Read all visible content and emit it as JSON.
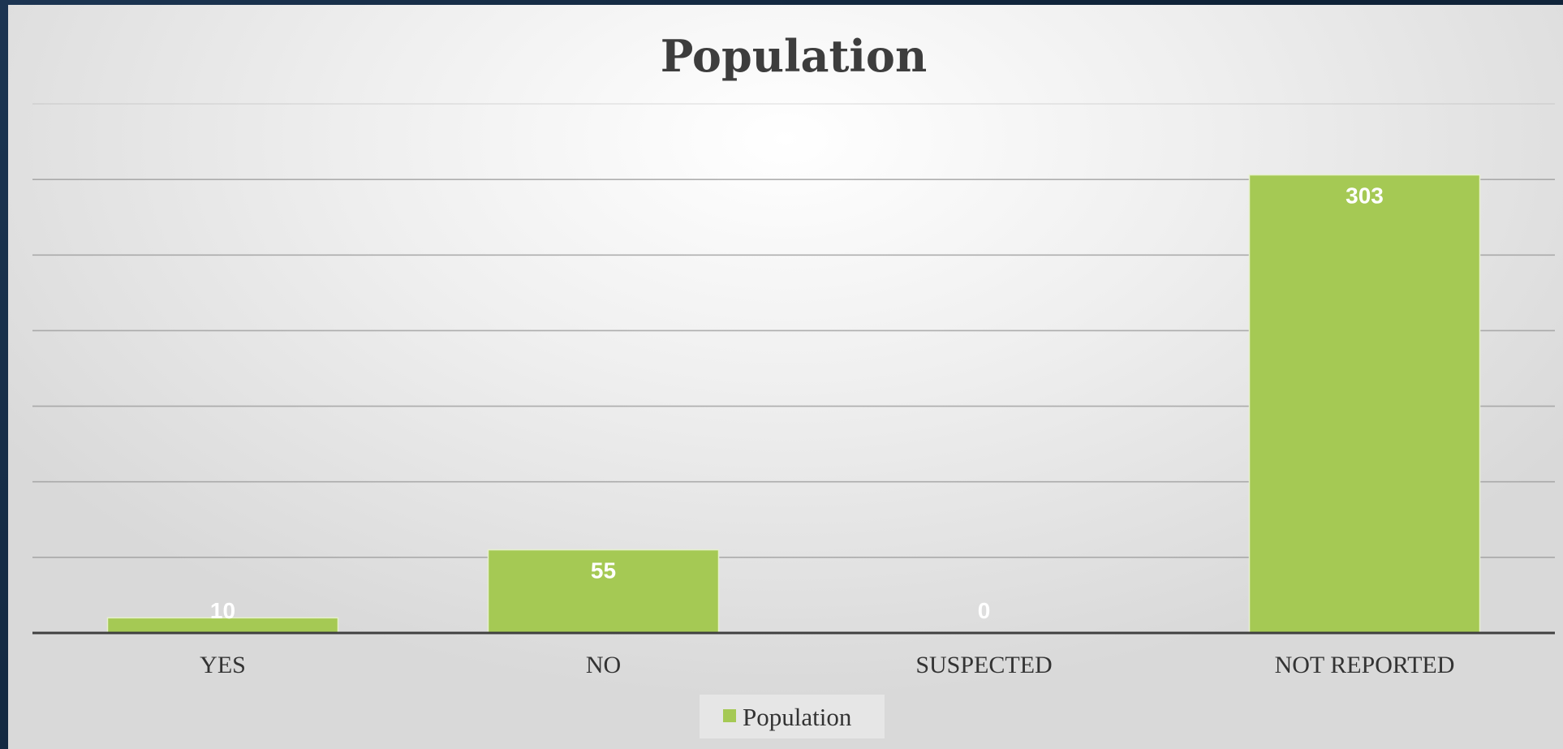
{
  "chart_data": {
    "type": "bar",
    "title": "Population",
    "categories": [
      "YES",
      "NO",
      "SUSPECTED",
      "NOT REPORTED"
    ],
    "series": [
      {
        "name": "Population",
        "values": [
          10,
          55,
          0,
          303
        ]
      }
    ],
    "data_labels": [
      "10",
      "55",
      "0",
      "303"
    ],
    "ylim": [
      0,
      350
    ],
    "y_grid_step": 50,
    "grid": true,
    "legend_position": "bottom",
    "colors": {
      "bar": "#a5c954",
      "bar_edge": "#e6f0cc",
      "grid": "#9c9c9c",
      "axis": "#404040"
    }
  }
}
